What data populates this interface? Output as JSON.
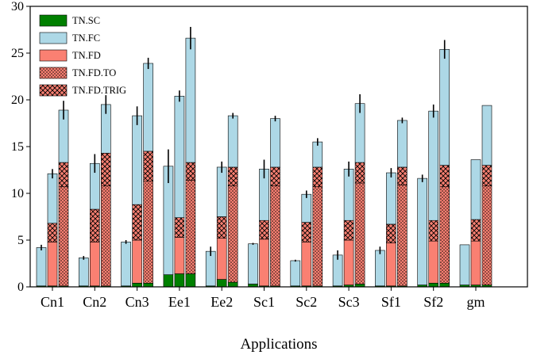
{
  "chart_data": {
    "type": "bar",
    "subtype": "grouped-stacked",
    "xlabel": "Applications",
    "ylabel": "",
    "ylim": [
      0,
      30
    ],
    "yticks": [
      0,
      5,
      10,
      15,
      20,
      25,
      30
    ],
    "grid": false,
    "legend_position": "top-left",
    "categories": [
      "Cn1",
      "Cn2",
      "Cn3",
      "Ee1",
      "Ee2",
      "Sc1",
      "Sc2",
      "Sc3",
      "Sf1",
      "Sf2",
      "gm"
    ],
    "series": [
      {
        "name": "TN.SC",
        "color": "#008000",
        "pattern": "solid"
      },
      {
        "name": "TN.FC",
        "color": "#add8e6",
        "pattern": "solid"
      },
      {
        "name": "TN.FD",
        "color": "#fa8072",
        "pattern": "solid"
      },
      {
        "name": "TN.FD.TO",
        "color": "#fa8072",
        "pattern": "dots"
      },
      {
        "name": "TN.FD.TRIG",
        "color": "#fa8072",
        "pattern": "crosshatch"
      }
    ],
    "groups": [
      {
        "category": "Cn1",
        "bars": [
          {
            "SC": 0.1,
            "FC": 4.1,
            "FD": 0,
            "FD_TO": 0,
            "FD_TRIG": 0,
            "err": 0.3
          },
          {
            "SC": 0.1,
            "FC": 5.3,
            "FD": 4.7,
            "FD_TO": 0,
            "FD_TRIG": 2.0,
            "err": 0.5
          },
          {
            "SC": 0.1,
            "FC": 5.6,
            "FD": 0,
            "FD_TO": 10.6,
            "FD_TRIG": 2.6,
            "err": 1.0
          }
        ]
      },
      {
        "category": "Cn2",
        "bars": [
          {
            "SC": 0.1,
            "FC": 3.0,
            "FD": 0,
            "FD_TO": 0,
            "FD_TRIG": 0,
            "err": 0.2
          },
          {
            "SC": 0.1,
            "FC": 4.9,
            "FD": 4.7,
            "FD_TO": 0,
            "FD_TRIG": 3.5,
            "err": 1.0
          },
          {
            "SC": 0.1,
            "FC": 5.2,
            "FD": 0,
            "FD_TO": 10.7,
            "FD_TRIG": 3.5,
            "err": 1.0
          }
        ]
      },
      {
        "category": "Cn3",
        "bars": [
          {
            "SC": 0.1,
            "FC": 4.7,
            "FD": 0,
            "FD_TO": 0,
            "FD_TRIG": 0,
            "err": 0.2
          },
          {
            "SC": 0.4,
            "FC": 9.5,
            "FD": 4.6,
            "FD_TO": 0,
            "FD_TRIG": 3.8,
            "err": 1.0
          },
          {
            "SC": 0.4,
            "FC": 9.4,
            "FD": 0,
            "FD_TO": 10.9,
            "FD_TRIG": 3.2,
            "err": 0.6
          }
        ]
      },
      {
        "category": "Ee1",
        "bars": [
          {
            "SC": 1.3,
            "FC": 11.6,
            "FD": 0,
            "FD_TO": 0,
            "FD_TRIG": 0,
            "err": 1.8
          },
          {
            "SC": 1.4,
            "FC": 13.0,
            "FD": 3.9,
            "FD_TO": 0,
            "FD_TRIG": 2.1,
            "err": 0.6
          },
          {
            "SC": 1.4,
            "FC": 13.3,
            "FD": 0,
            "FD_TO": 10.0,
            "FD_TRIG": 1.9,
            "err": 1.2
          }
        ]
      },
      {
        "category": "Ee2",
        "bars": [
          {
            "SC": 0.1,
            "FC": 3.7,
            "FD": 0,
            "FD_TO": 0,
            "FD_TRIG": 0,
            "err": 0.5
          },
          {
            "SC": 0.8,
            "FC": 5.3,
            "FD": 4.4,
            "FD_TO": 0,
            "FD_TRIG": 2.3,
            "err": 0.6
          },
          {
            "SC": 0.5,
            "FC": 5.5,
            "FD": 0,
            "FD_TO": 10.3,
            "FD_TRIG": 2.0,
            "err": 0.3
          }
        ]
      },
      {
        "category": "Sc1",
        "bars": [
          {
            "SC": 0.3,
            "FC": 4.3,
            "FD": 0,
            "FD_TO": 0,
            "FD_TRIG": 0,
            "err": 0.1
          },
          {
            "SC": 0.1,
            "FC": 5.5,
            "FD": 5.0,
            "FD_TO": 0,
            "FD_TRIG": 2.0,
            "err": 1.0
          },
          {
            "SC": 0.1,
            "FC": 5.2,
            "FD": 0,
            "FD_TO": 10.7,
            "FD_TRIG": 2.0,
            "err": 0.3
          }
        ]
      },
      {
        "category": "Sc2",
        "bars": [
          {
            "SC": 0.1,
            "FC": 2.7,
            "FD": 0,
            "FD_TO": 0,
            "FD_TRIG": 0,
            "err": 0.1
          },
          {
            "SC": 0.1,
            "FC": 3.0,
            "FD": 4.7,
            "FD_TO": 0,
            "FD_TRIG": 2.1,
            "err": 0.4
          },
          {
            "SC": 0.1,
            "FC": 2.7,
            "FD": 0,
            "FD_TO": 10.6,
            "FD_TRIG": 2.1,
            "err": 0.4
          }
        ]
      },
      {
        "category": "Sc3",
        "bars": [
          {
            "SC": 0.1,
            "FC": 3.3,
            "FD": 0,
            "FD_TO": 0,
            "FD_TRIG": 0,
            "err": 0.5
          },
          {
            "SC": 0.2,
            "FC": 5.5,
            "FD": 4.8,
            "FD_TO": 0,
            "FD_TRIG": 2.1,
            "err": 0.8
          },
          {
            "SC": 0.3,
            "FC": 6.3,
            "FD": 0,
            "FD_TO": 10.8,
            "FD_TRIG": 2.2,
            "err": 1.0
          }
        ]
      },
      {
        "category": "Sf1",
        "bars": [
          {
            "SC": 0.1,
            "FC": 3.8,
            "FD": 0,
            "FD_TO": 0,
            "FD_TRIG": 0,
            "err": 0.4
          },
          {
            "SC": 0.1,
            "FC": 5.5,
            "FD": 4.6,
            "FD_TO": 0,
            "FD_TRIG": 2.0,
            "err": 0.5
          },
          {
            "SC": 0.1,
            "FC": 5.0,
            "FD": 0,
            "FD_TO": 10.8,
            "FD_TRIG": 1.9,
            "err": 0.3
          }
        ]
      },
      {
        "category": "Sf2",
        "bars": [
          {
            "SC": 0.2,
            "FC": 11.4,
            "FD": 0,
            "FD_TO": 0,
            "FD_TRIG": 0,
            "err": 0.4
          },
          {
            "SC": 0.4,
            "FC": 11.7,
            "FD": 4.5,
            "FD_TO": 0,
            "FD_TRIG": 2.2,
            "err": 0.7
          },
          {
            "SC": 0.4,
            "FC": 12.4,
            "FD": 0,
            "FD_TO": 10.3,
            "FD_TRIG": 2.3,
            "err": 1.0
          }
        ]
      },
      {
        "category": "gm",
        "bars": [
          {
            "SC": 0.2,
            "FC": 4.3,
            "FD": 0,
            "FD_TO": 0,
            "FD_TRIG": 0,
            "err": 0
          },
          {
            "SC": 0.2,
            "FC": 6.4,
            "FD": 4.7,
            "FD_TO": 0,
            "FD_TRIG": 2.3,
            "err": 0
          },
          {
            "SC": 0.2,
            "FC": 6.4,
            "FD": 0,
            "FD_TO": 10.6,
            "FD_TRIG": 2.2,
            "err": 0
          }
        ]
      }
    ]
  }
}
